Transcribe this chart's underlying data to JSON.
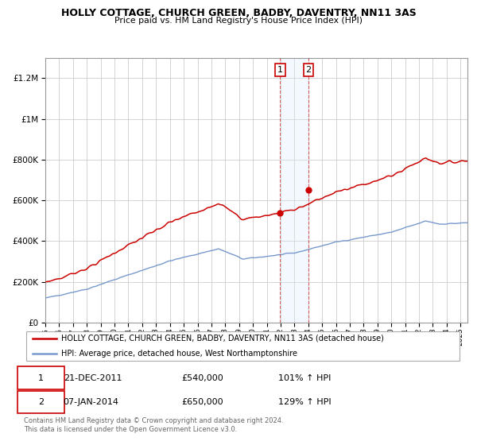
{
  "title": "HOLLY COTTAGE, CHURCH GREEN, BADBY, DAVENTRY, NN11 3AS",
  "subtitle": "Price paid vs. HM Land Registry's House Price Index (HPI)",
  "legend_line1": "HOLLY COTTAGE, CHURCH GREEN, BADBY, DAVENTRY, NN11 3AS (detached house)",
  "legend_line2": "HPI: Average price, detached house, West Northamptonshire",
  "sale1_label": "1",
  "sale1_date": "21-DEC-2011",
  "sale1_price": "£540,000",
  "sale1_hpi": "101% ↑ HPI",
  "sale2_label": "2",
  "sale2_date": "07-JAN-2014",
  "sale2_price": "£650,000",
  "sale2_hpi": "129% ↑ HPI",
  "footer": "Contains HM Land Registry data © Crown copyright and database right 2024.\nThis data is licensed under the Open Government Licence v3.0.",
  "red_color": "#cc0000",
  "blue_color": "#7799cc",
  "shading_color": "#ddeeff",
  "background_color": "#ffffff",
  "grid_color": "#cccccc",
  "ylim": [
    0,
    1300000
  ],
  "sale1_x": 2011.97,
  "sale1_y": 540000,
  "sale2_x": 2014.02,
  "sale2_y": 650000,
  "xmin": 1995.0,
  "xmax": 2025.5
}
